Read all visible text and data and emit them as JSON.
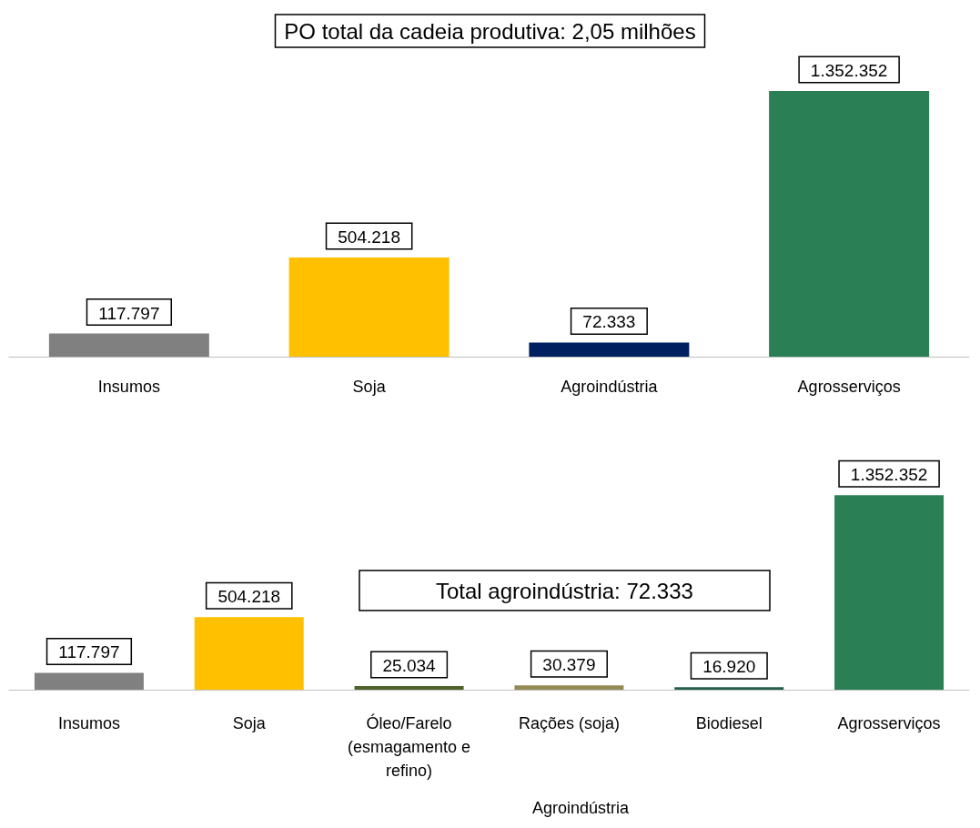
{
  "chart_data": [
    {
      "type": "bar",
      "title": "PO total da cadeia produtiva: 2,05 milhões",
      "categories": [
        "Insumos",
        "Soja",
        "Agroindústria",
        "Agrosserviços"
      ],
      "values": [
        117797,
        504218,
        72333,
        1352352
      ],
      "colors": [
        "#808080",
        "#ffc000",
        "#002060",
        "#2a7f55"
      ],
      "value_labels": [
        "117.797",
        "504.218",
        "72.333",
        "1.352.352"
      ]
    },
    {
      "type": "bar",
      "title": "Total agroindústria: 72.333",
      "categories": [
        "Insumos",
        "Soja",
        "Óleo/Farelo\n(esmagamento e\nrefino)",
        "Rações (soja)",
        "Biodiesel",
        "Agrosserviços"
      ],
      "values": [
        117797,
        504218,
        25034,
        30379,
        16920,
        1352352
      ],
      "colors": [
        "#808080",
        "#ffc000",
        "#4f6228",
        "#948a54",
        "#215f4a",
        "#2a7f55"
      ],
      "value_labels": [
        "117.797",
        "504.218",
        "25.034",
        "30.379",
        "16.920",
        "1.352.352"
      ],
      "annotations": [
        "Agroindústria"
      ]
    }
  ]
}
